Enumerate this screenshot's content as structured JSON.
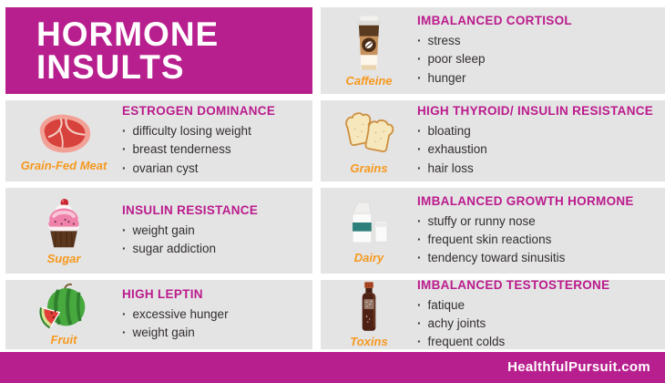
{
  "colors": {
    "accent": "#b81f8e",
    "card_bg": "#e4e4e4",
    "heading": "#bb1b8d",
    "label_orange": "#f6991e",
    "body_text": "#332e30"
  },
  "title": {
    "line1": "HORMONE",
    "line2": "INSULTS"
  },
  "bullet_char": "·",
  "cards": [
    {
      "label": "Caffeine",
      "heading": "IMBALANCED CORTISOL",
      "bullets": [
        "stress",
        "poor sleep",
        "hunger"
      ]
    },
    {
      "label": "Grain-Fed Meat",
      "heading": "ESTROGEN DOMINANCE",
      "bullets": [
        "difficulty losing weight",
        "breast tenderness",
        "ovarian cyst"
      ]
    },
    {
      "label": "Grains",
      "heading": "HIGH THYROID/ INSULIN RESISTANCE",
      "bullets": [
        "bloating",
        "exhaustion",
        "hair loss"
      ]
    },
    {
      "label": "Sugar",
      "heading": "INSULIN RESISTANCE",
      "bullets": [
        "weight gain",
        "sugar addiction"
      ]
    },
    {
      "label": "Dairy",
      "heading": "IMBALANCED GROWTH HORMONE",
      "bullets": [
        "stuffy or runny nose",
        "frequent skin reactions",
        "tendency toward sinusitis"
      ]
    },
    {
      "label": "Fruit",
      "heading": "HIGH LEPTIN",
      "bullets": [
        "excessive hunger",
        "weight gain"
      ]
    },
    {
      "label": "Toxins",
      "heading": "IMBALANCED TESTOSTERONE",
      "bullets": [
        "fatique",
        "achy joints",
        "frequent colds"
      ]
    }
  ],
  "footer": {
    "site": "HealthfulPursuit.com"
  }
}
